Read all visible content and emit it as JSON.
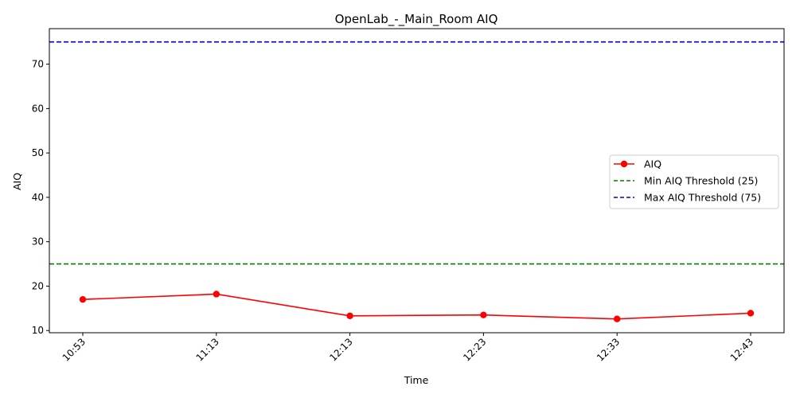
{
  "chart_data": {
    "type": "line",
    "title": "OpenLab_-_Main_Room AIQ",
    "xlabel": "Time",
    "ylabel": "AIQ",
    "categories": [
      "10:53",
      "11:13",
      "12:13",
      "12:23",
      "12:33",
      "12:43"
    ],
    "series": [
      {
        "name": "AIQ",
        "values": [
          17.0,
          18.2,
          13.3,
          13.5,
          12.6,
          13.9
        ],
        "color": "#ff0000",
        "marker": "circle"
      }
    ],
    "thresholds": [
      {
        "name": "Min AIQ Threshold (25)",
        "value": 25,
        "color": "#008000",
        "style": "dashed"
      },
      {
        "name": "Max AIQ Threshold (75)",
        "value": 75,
        "color": "#0000cc",
        "style": "dashed"
      }
    ],
    "ylim": [
      9.5,
      78
    ],
    "yticks": [
      10,
      20,
      30,
      40,
      50,
      60,
      70
    ],
    "legend_placement": "center-right",
    "grid": false,
    "x_tick_rotation": 45
  }
}
